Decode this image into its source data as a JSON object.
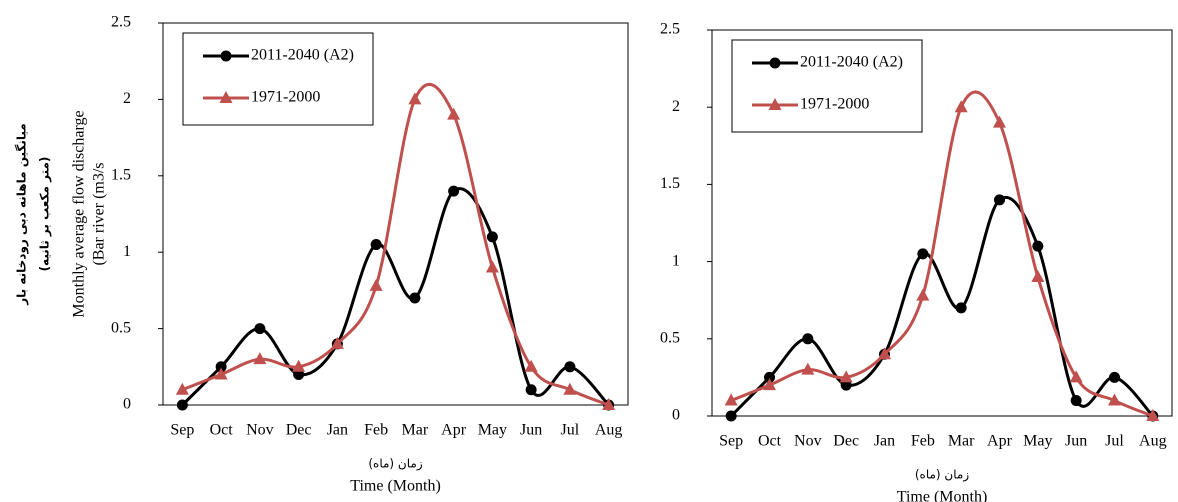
{
  "chart_data": [
    {
      "type": "line",
      "y_label_fa": [
        "میانگین ماهانه دبی رودخانه بار",
        "(متر مکعب بر ثانیه)"
      ],
      "y_label": [
        "Monthly  average flow  discharge",
        "(Bar river  (m3/s"
      ],
      "x_label_fa": "زمان (ماه)",
      "x_label": "Time  (Month)",
      "categories": [
        "Sep",
        "Oct",
        "Nov",
        "Dec",
        "Jan",
        "Feb",
        "Mar",
        "Apr",
        "May",
        "Jun",
        "Jul",
        "Aug"
      ],
      "series": [
        {
          "name": "2011-2040 (A2)",
          "color": "#000000",
          "marker": "circle",
          "values": [
            0,
            0.25,
            0.5,
            0.2,
            0.4,
            1.05,
            0.7,
            1.4,
            1.1,
            0.1,
            0.25,
            0
          ]
        },
        {
          "name": "1971-2000",
          "color": "#c0504d",
          "marker": "triangle",
          "values": [
            0.1,
            0.2,
            0.3,
            0.25,
            0.4,
            0.78,
            2.0,
            1.9,
            0.9,
            0.25,
            0.1,
            0
          ]
        }
      ],
      "ylim": [
        0,
        2.5
      ],
      "yticks": [
        0,
        0.5,
        1,
        1.5,
        2,
        2.5
      ],
      "legend": "upper left"
    },
    {
      "type": "line",
      "x_label_fa": "زمان (ماه)",
      "x_label": "Time  (Month)",
      "categories": [
        "Sep",
        "Oct",
        "Nov",
        "Dec",
        "Jan",
        "Feb",
        "Mar",
        "Apr",
        "May",
        "Jun",
        "Jul",
        "Aug"
      ],
      "series": [
        {
          "name": "2011-2040 (A2)",
          "color": "#000000",
          "marker": "circle",
          "values": [
            0,
            0.25,
            0.5,
            0.2,
            0.4,
            1.05,
            0.7,
            1.4,
            1.1,
            0.1,
            0.25,
            0
          ]
        },
        {
          "name": "1971-2000",
          "color": "#c0504d",
          "marker": "triangle",
          "values": [
            0.1,
            0.2,
            0.3,
            0.25,
            0.4,
            0.78,
            2.0,
            1.9,
            0.9,
            0.25,
            0.1,
            0
          ]
        }
      ],
      "ylim": [
        0,
        2.5
      ],
      "yticks": [
        0,
        0.5,
        1,
        1.5,
        2,
        2.5
      ],
      "legend": "upper left"
    }
  ]
}
